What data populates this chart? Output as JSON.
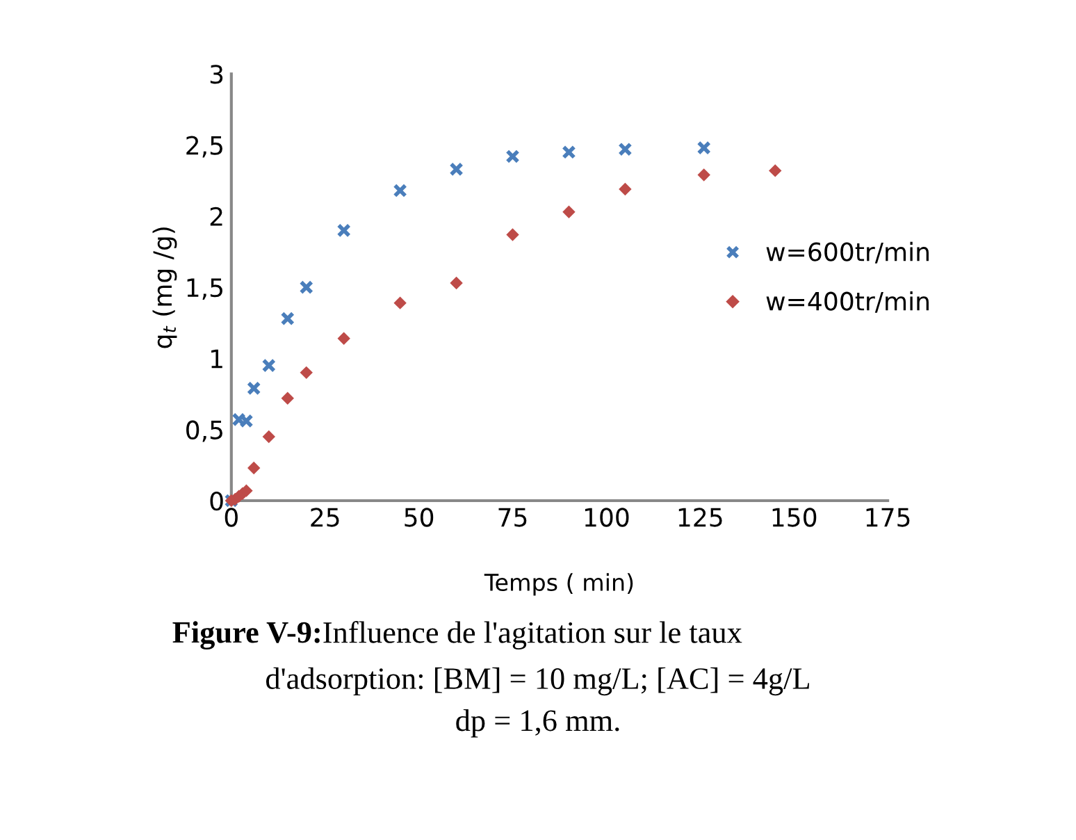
{
  "chart_data": {
    "type": "scatter",
    "xlabel": "Temps ( min)",
    "ylabel": "q$_{t}$ (mg /g)",
    "xlim": [
      0,
      175
    ],
    "xticks": [
      0,
      25,
      50,
      75,
      100,
      125,
      150,
      175
    ],
    "ylim": [
      0,
      3
    ],
    "yticks": [
      0,
      {
        "value": 0.5,
        "label": "0,5"
      },
      1,
      {
        "value": 1.5,
        "label": "1,5"
      },
      2,
      {
        "value": 2.5,
        "label": "2,5"
      },
      3
    ],
    "grid": false,
    "legend": "right",
    "series": [
      {
        "name": "w=600tr/min",
        "color": "#4a7ebb",
        "marker": "cross",
        "x": [
          0,
          2,
          4,
          6,
          10,
          15,
          20,
          30,
          45,
          60,
          75,
          90,
          105,
          126
        ],
        "values": [
          0,
          0.57,
          0.56,
          0.79,
          0.95,
          1.28,
          1.5,
          1.9,
          2.18,
          2.33,
          2.42,
          2.45,
          2.47,
          2.48
        ]
      },
      {
        "name": "w=400tr/min",
        "color": "#be4b48",
        "marker": "diamond",
        "x": [
          0,
          1,
          2,
          3,
          4,
          6,
          10,
          15,
          20,
          30,
          45,
          60,
          75,
          90,
          105,
          126,
          145
        ],
        "values": [
          0,
          0.01,
          0.03,
          0.05,
          0.07,
          0.23,
          0.45,
          0.72,
          0.9,
          1.14,
          1.39,
          1.53,
          1.87,
          2.03,
          2.19,
          2.29,
          2.32
        ]
      }
    ],
    "annotations": [
      "Figure V-9:",
      "Influence de l'agitation sur le taux",
      "d'adsorption: [BM] = 10 mg/L; [AC] = 4g/L",
      "dp = 1,6 mm."
    ]
  }
}
